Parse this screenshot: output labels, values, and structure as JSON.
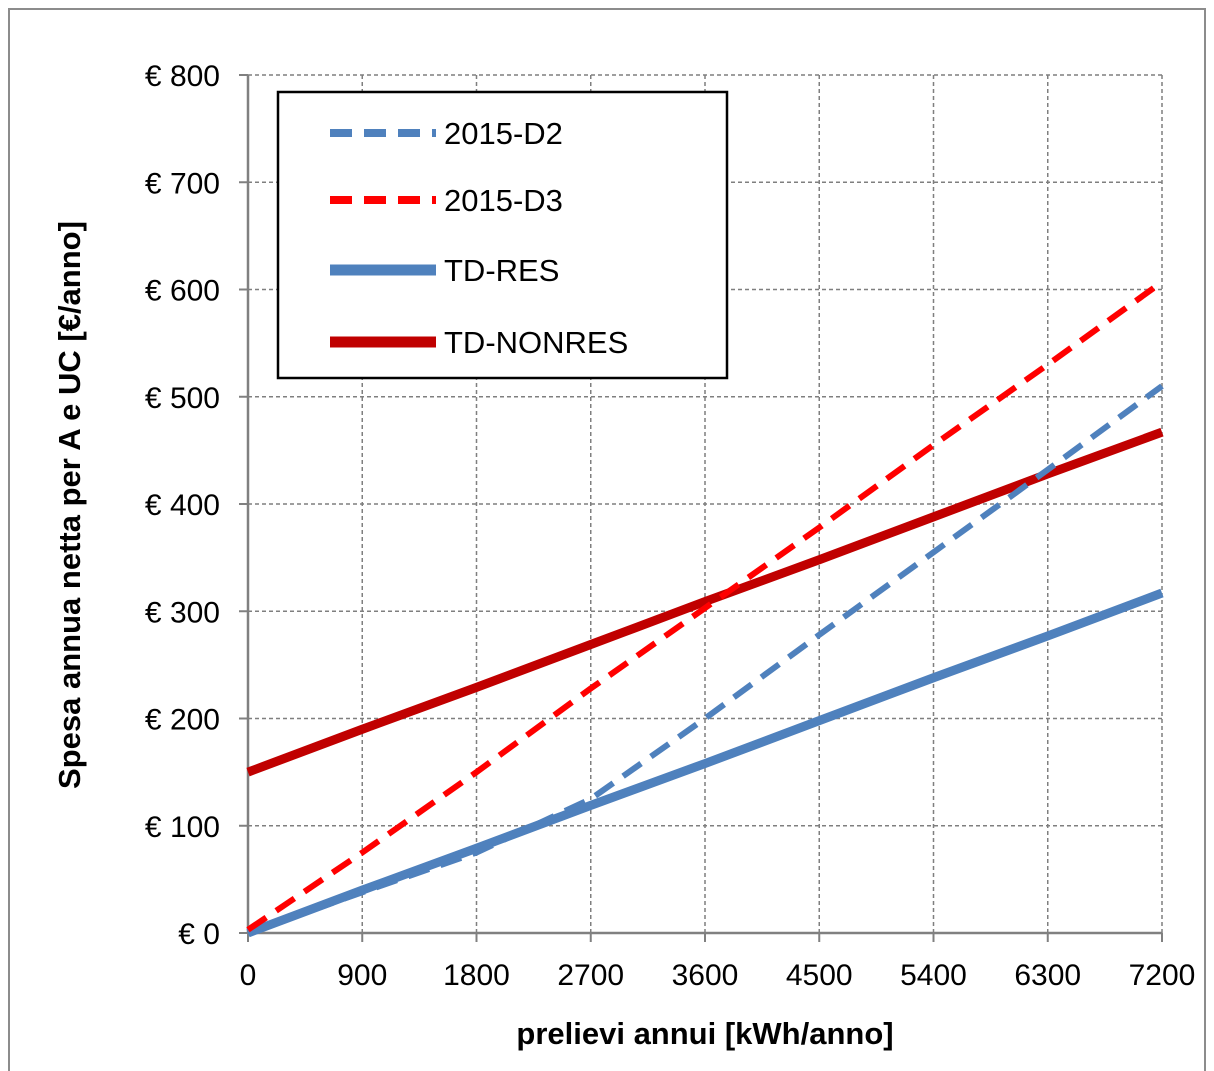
{
  "chart_data": {
    "type": "line",
    "title": "",
    "xlabel": "prelievi annui [kWh/anno]",
    "ylabel": "Spesa annua netta per A e UC [€/anno]",
    "xlim": [
      0,
      7200
    ],
    "ylim": [
      0,
      800
    ],
    "x_ticks": [
      0,
      900,
      1800,
      2700,
      3600,
      4500,
      5400,
      6300,
      7200
    ],
    "x_tick_labels": [
      "0",
      "900",
      "1800",
      "2700",
      "3600",
      "4500",
      "5400",
      "6300",
      "7200"
    ],
    "y_ticks": [
      0,
      100,
      200,
      300,
      400,
      500,
      600,
      700,
      800
    ],
    "y_tick_labels": [
      "€ 0",
      "€ 100",
      "€ 200",
      "€ 300",
      "€ 400",
      "€ 500",
      "€ 600",
      "€ 700",
      "€ 800"
    ],
    "grid": true,
    "legend_position": "top-left",
    "series": [
      {
        "name": "2015-D2",
        "color": "#4f81bd",
        "style": "dashed",
        "x": [
          0,
          900,
          1800,
          2700,
          3600,
          4500,
          5400,
          6300,
          7200
        ],
        "y": [
          0,
          38,
          75,
          125,
          200,
          278,
          355,
          432,
          510
        ]
      },
      {
        "name": "2015-D3",
        "color": "#ff0000",
        "style": "dashed",
        "x": [
          0,
          900,
          1800,
          2700,
          3600,
          4500,
          5400,
          6300,
          7200
        ],
        "y": [
          3,
          75,
          150,
          228,
          303,
          378,
          455,
          530,
          607
        ]
      },
      {
        "name": "TD-RES",
        "color": "#4f81bd",
        "style": "solid",
        "x": [
          0,
          900,
          1800,
          2700,
          3600,
          4500,
          5400,
          6300,
          7200
        ],
        "y": [
          0,
          40,
          79,
          119,
          158,
          198,
          238,
          277,
          317
        ]
      },
      {
        "name": "TD-NONRES",
        "color": "#c00000",
        "style": "solid",
        "x": [
          0,
          900,
          1800,
          2700,
          3600,
          4500,
          5400,
          6300,
          7200
        ],
        "y": [
          150,
          190,
          229,
          269,
          309,
          348,
          388,
          428,
          467
        ]
      }
    ]
  }
}
